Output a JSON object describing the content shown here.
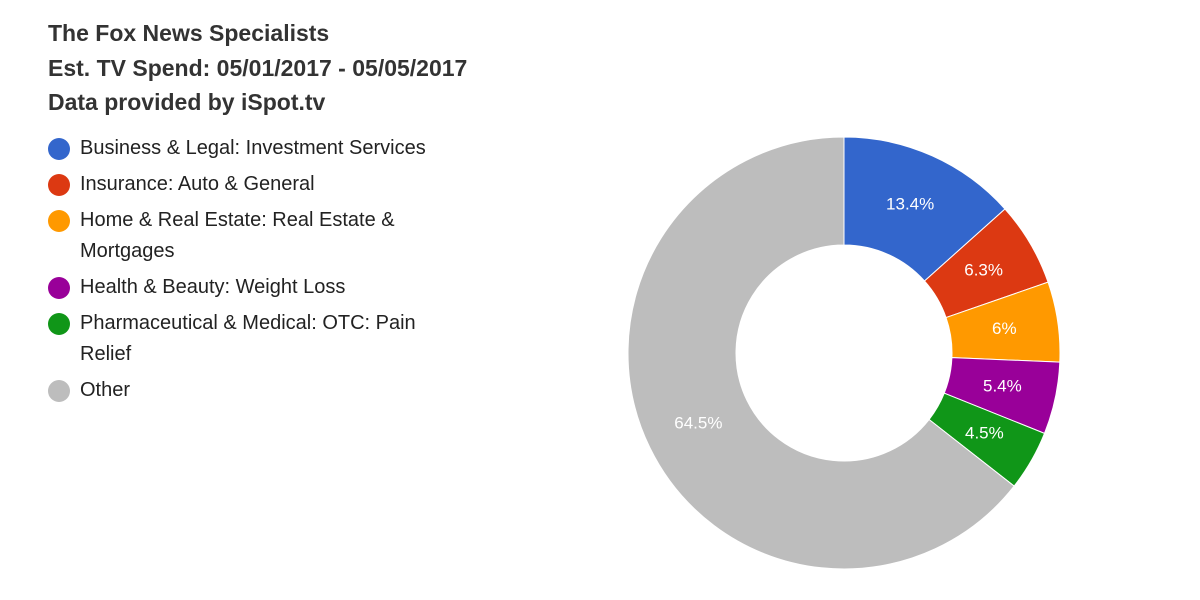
{
  "chart_data": {
    "type": "donut",
    "title": "The Fox News Specialists",
    "subtitle": "Est. TV Spend: 05/01/2017 - 05/05/2017",
    "note": "Data provided by iSpot.tv",
    "categories": [
      "Business & Legal: Investment Services",
      "Insurance: Auto & General",
      "Home & Real Estate: Real Estate & Mortgages",
      "Health & Beauty: Weight Loss",
      "Pharmaceutical & Medical: OTC: Pain Relief",
      "Other"
    ],
    "values": [
      13.4,
      6.3,
      6,
      5.4,
      4.5,
      64.5
    ],
    "value_labels": [
      "13.4%",
      "6.3%",
      "6%",
      "5.4%",
      "4.5%",
      "64.5%"
    ],
    "colors": [
      "#3366cc",
      "#dc3912",
      "#ff9900",
      "#990099",
      "#109618",
      "#bdbdbd"
    ]
  }
}
